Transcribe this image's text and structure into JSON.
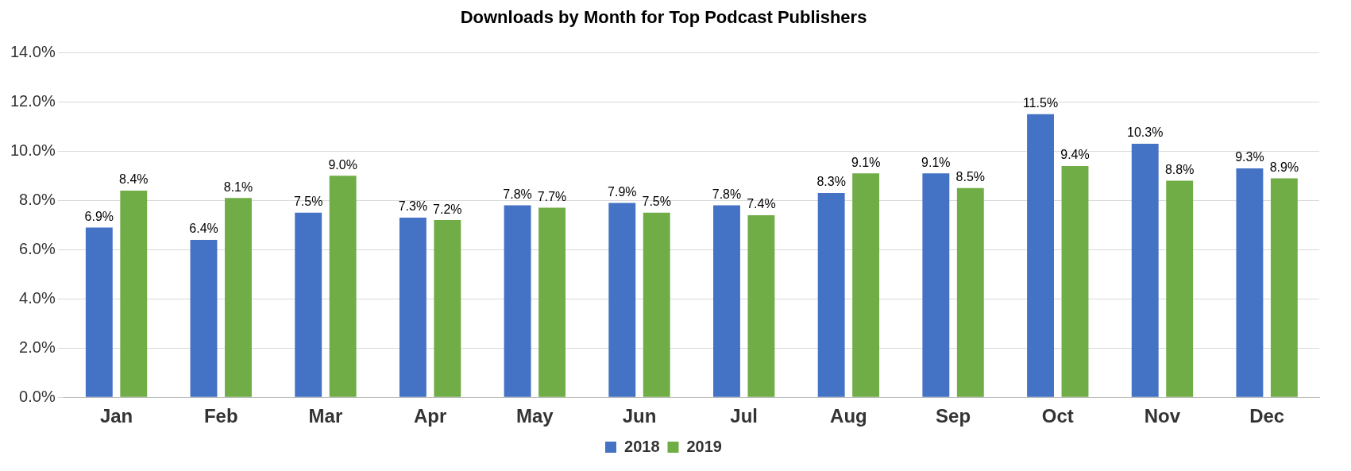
{
  "chart_data": {
    "type": "bar",
    "title": "Downloads by Month for Top Podcast Publishers",
    "categories": [
      "Jan",
      "Feb",
      "Mar",
      "Apr",
      "May",
      "Jun",
      "Jul",
      "Aug",
      "Sep",
      "Oct",
      "Nov",
      "Dec"
    ],
    "series": [
      {
        "name": "2018",
        "color": "#4472c4",
        "values": [
          6.9,
          6.4,
          7.5,
          7.3,
          7.8,
          7.9,
          7.8,
          8.3,
          9.1,
          11.5,
          10.3,
          9.3
        ],
        "value_labels": [
          "6.9%",
          "6.4%",
          "7.5%",
          "7.3%",
          "7.8%",
          "7.9%",
          "7.8%",
          "8.3%",
          "9.1%",
          "11.5%",
          "10.3%",
          "9.3%"
        ]
      },
      {
        "name": "2019",
        "color": "#70ad47",
        "values": [
          8.4,
          8.1,
          9.0,
          7.2,
          7.7,
          7.5,
          7.4,
          9.1,
          8.5,
          9.4,
          8.8,
          8.9
        ],
        "value_labels": [
          "8.4%",
          "8.1%",
          "9.0%",
          "7.2%",
          "7.7%",
          "7.5%",
          "7.4%",
          "9.1%",
          "8.5%",
          "9.4%",
          "8.8%",
          "8.9%"
        ]
      }
    ],
    "ylim": [
      0,
      14
    ],
    "yticks": [
      {
        "value": 0,
        "label": "0.0%"
      },
      {
        "value": 2,
        "label": "2.0%"
      },
      {
        "value": 4,
        "label": "4.0%"
      },
      {
        "value": 6,
        "label": "6.0%"
      },
      {
        "value": 8,
        "label": "8.0%"
      },
      {
        "value": 10,
        "label": "10.0%"
      },
      {
        "value": 12,
        "label": "12.0%"
      },
      {
        "value": 14,
        "label": "14.0%"
      }
    ],
    "grid": "y",
    "legend": "bottom"
  }
}
